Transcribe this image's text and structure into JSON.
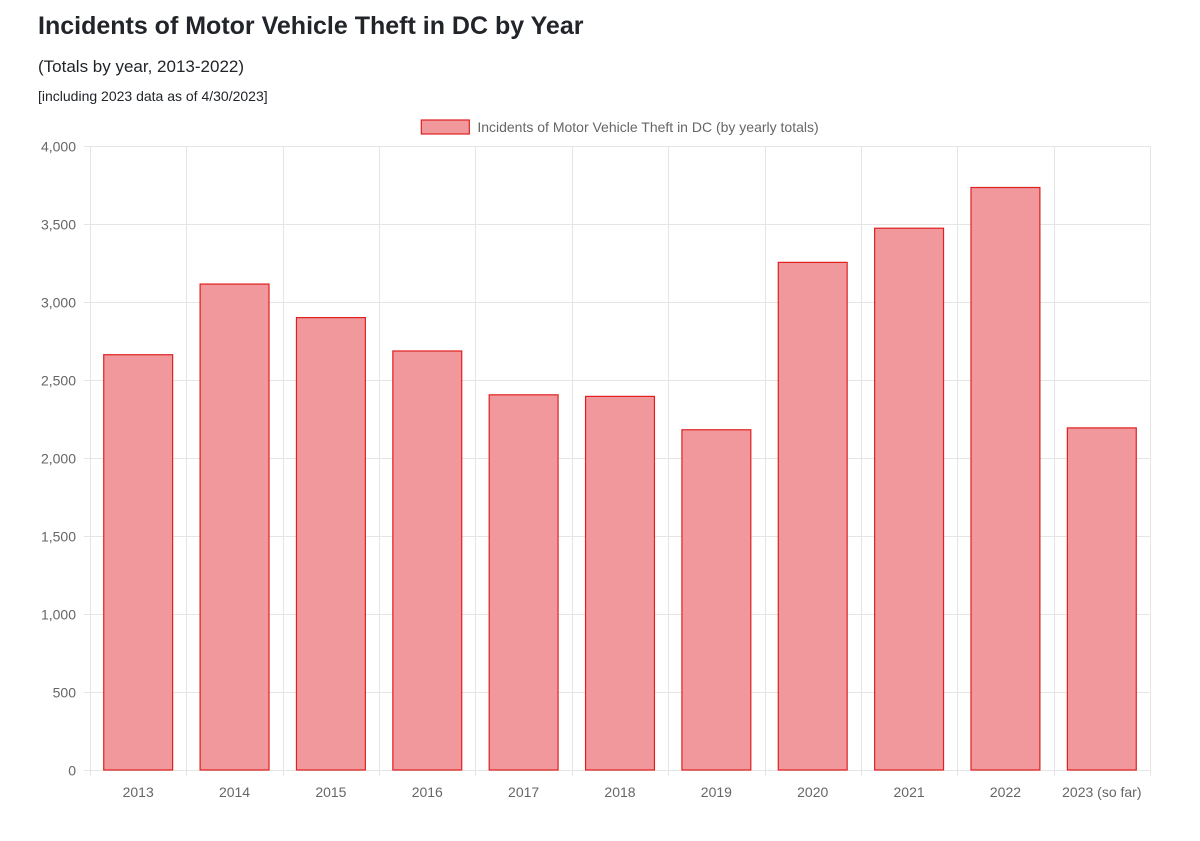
{
  "header": {
    "title": "Incidents of Motor Vehicle Theft in DC by Year",
    "subtitle": "(Totals by year, 2013-2022)",
    "note": "[including 2023 data as of 4/30/2023]"
  },
  "chart_data": {
    "type": "bar",
    "categories": [
      "2013",
      "2014",
      "2015",
      "2016",
      "2017",
      "2018",
      "2019",
      "2020",
      "2021",
      "2022",
      "2023 (so far)"
    ],
    "series": [
      {
        "name": "Incidents of Motor Vehicle Theft in DC (by yearly totals)",
        "values": [
          2662,
          3115,
          2900,
          2686,
          2405,
          2395,
          2181,
          3254,
          3473,
          3734,
          2193
        ]
      }
    ],
    "ylim": [
      0,
      4000
    ],
    "yticks": [
      0,
      500,
      1000,
      1500,
      2000,
      2500,
      3000,
      3500,
      4000
    ],
    "ytick_labels": [
      "0",
      "500",
      "1,000",
      "1,500",
      "2,000",
      "2,500",
      "3,000",
      "3,500",
      "4,000"
    ],
    "grid": true,
    "legend_position": "top-center",
    "colors": {
      "bar_fill": "#f0989b",
      "bar_stroke": "#e02020",
      "grid": "#e5e5e5",
      "tick_text": "#666666"
    }
  }
}
